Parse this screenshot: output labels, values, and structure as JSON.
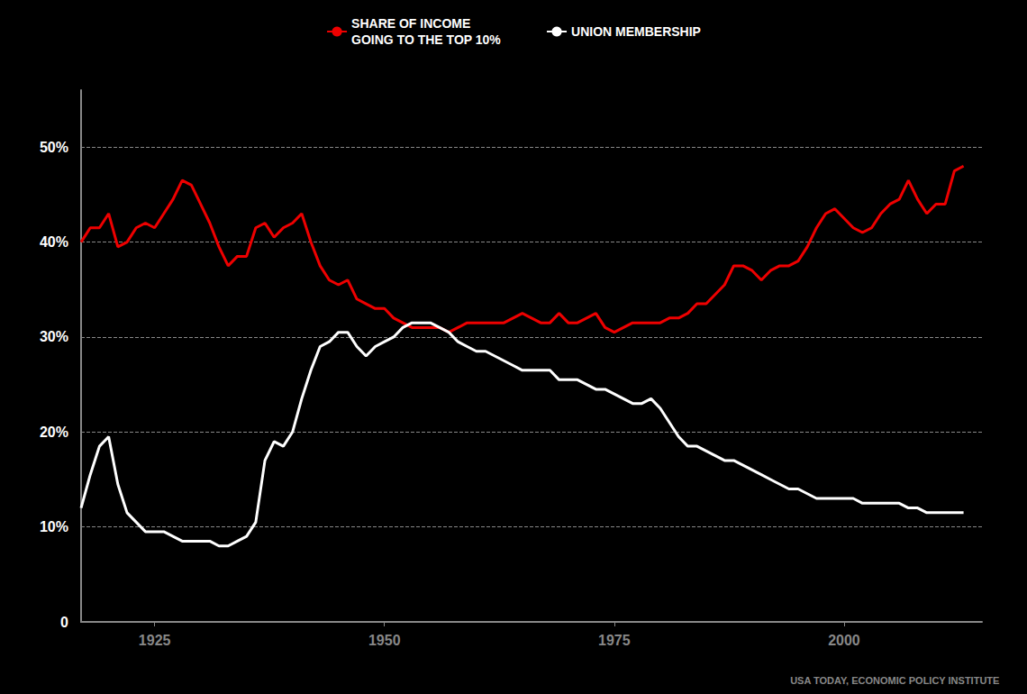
{
  "chart_data": {
    "type": "line",
    "x": [
      1917,
      1918,
      1919,
      1920,
      1921,
      1922,
      1923,
      1924,
      1925,
      1926,
      1927,
      1928,
      1929,
      1930,
      1931,
      1932,
      1933,
      1934,
      1935,
      1936,
      1937,
      1938,
      1939,
      1940,
      1941,
      1942,
      1943,
      1944,
      1945,
      1946,
      1947,
      1948,
      1949,
      1950,
      1951,
      1952,
      1953,
      1954,
      1955,
      1956,
      1957,
      1958,
      1959,
      1960,
      1961,
      1962,
      1963,
      1964,
      1965,
      1966,
      1967,
      1968,
      1969,
      1970,
      1971,
      1972,
      1973,
      1974,
      1975,
      1976,
      1977,
      1978,
      1979,
      1980,
      1981,
      1982,
      1983,
      1984,
      1985,
      1986,
      1987,
      1988,
      1989,
      1990,
      1991,
      1992,
      1993,
      1994,
      1995,
      1996,
      1997,
      1998,
      1999,
      2000,
      2001,
      2002,
      2003,
      2004,
      2005,
      2006,
      2007,
      2008,
      2009,
      2010,
      2011,
      2012,
      2013
    ],
    "series": [
      {
        "name": "SHARE OF INCOME\nGOING TO THE TOP 10%",
        "color": "#EE0000",
        "values": [
          0.4,
          0.415,
          0.415,
          0.43,
          0.395,
          0.4,
          0.415,
          0.42,
          0.415,
          0.43,
          0.445,
          0.465,
          0.46,
          0.44,
          0.42,
          0.395,
          0.375,
          0.385,
          0.385,
          0.415,
          0.42,
          0.405,
          0.415,
          0.42,
          0.43,
          0.4,
          0.375,
          0.36,
          0.355,
          0.36,
          0.34,
          0.335,
          0.33,
          0.33,
          0.32,
          0.315,
          0.31,
          0.31,
          0.31,
          0.31,
          0.305,
          0.31,
          0.315,
          0.315,
          0.315,
          0.315,
          0.315,
          0.32,
          0.325,
          0.32,
          0.315,
          0.315,
          0.325,
          0.315,
          0.315,
          0.32,
          0.325,
          0.31,
          0.305,
          0.31,
          0.315,
          0.315,
          0.315,
          0.315,
          0.32,
          0.32,
          0.325,
          0.335,
          0.335,
          0.345,
          0.355,
          0.375,
          0.375,
          0.37,
          0.36,
          0.37,
          0.375,
          0.375,
          0.38,
          0.395,
          0.415,
          0.43,
          0.435,
          0.425,
          0.415,
          0.41,
          0.415,
          0.43,
          0.44,
          0.445,
          0.465,
          0.445,
          0.43,
          0.44,
          0.44,
          0.475,
          0.48
        ]
      },
      {
        "name": "UNION MEMBERSHIP",
        "color": "#FFFFFF",
        "values": [
          0.12,
          0.155,
          0.185,
          0.195,
          0.145,
          0.115,
          0.105,
          0.095,
          0.095,
          0.095,
          0.09,
          0.085,
          0.085,
          0.085,
          0.085,
          0.08,
          0.08,
          0.085,
          0.09,
          0.105,
          0.17,
          0.19,
          0.185,
          0.2,
          0.235,
          0.265,
          0.29,
          0.295,
          0.305,
          0.305,
          0.29,
          0.28,
          0.29,
          0.295,
          0.3,
          0.31,
          0.315,
          0.315,
          0.315,
          0.31,
          0.305,
          0.295,
          0.29,
          0.285,
          0.285,
          0.28,
          0.275,
          0.27,
          0.265,
          0.265,
          0.265,
          0.265,
          0.255,
          0.255,
          0.255,
          0.25,
          0.245,
          0.245,
          0.24,
          0.235,
          0.23,
          0.23,
          0.235,
          0.225,
          0.21,
          0.195,
          0.185,
          0.185,
          0.18,
          0.175,
          0.17,
          0.17,
          0.165,
          0.16,
          0.155,
          0.15,
          0.145,
          0.14,
          0.14,
          0.135,
          0.13,
          0.13,
          0.13,
          0.13,
          0.13,
          0.125,
          0.125,
          0.125,
          0.125,
          0.125,
          0.12,
          0.12,
          0.115,
          0.115,
          0.115,
          0.115,
          0.115
        ]
      }
    ],
    "xlim": [
      1917,
      2015
    ],
    "xticks": [
      1925,
      1950,
      1975,
      2000
    ],
    "ylim": [
      0,
      0.56
    ],
    "yticks": [
      0,
      {
        "value": 0.1,
        "label": "10%"
      },
      {
        "value": 0.2,
        "label": "20%"
      },
      {
        "value": 0.3,
        "label": "30%"
      },
      {
        "value": 0.4,
        "label": "40%"
      },
      {
        "value": 0.5,
        "label": "50%"
      }
    ],
    "grid": true,
    "legend": "top",
    "annotations": [
      "USA TODAY, ECONOMIC POLICY INSTITUTE"
    ]
  }
}
